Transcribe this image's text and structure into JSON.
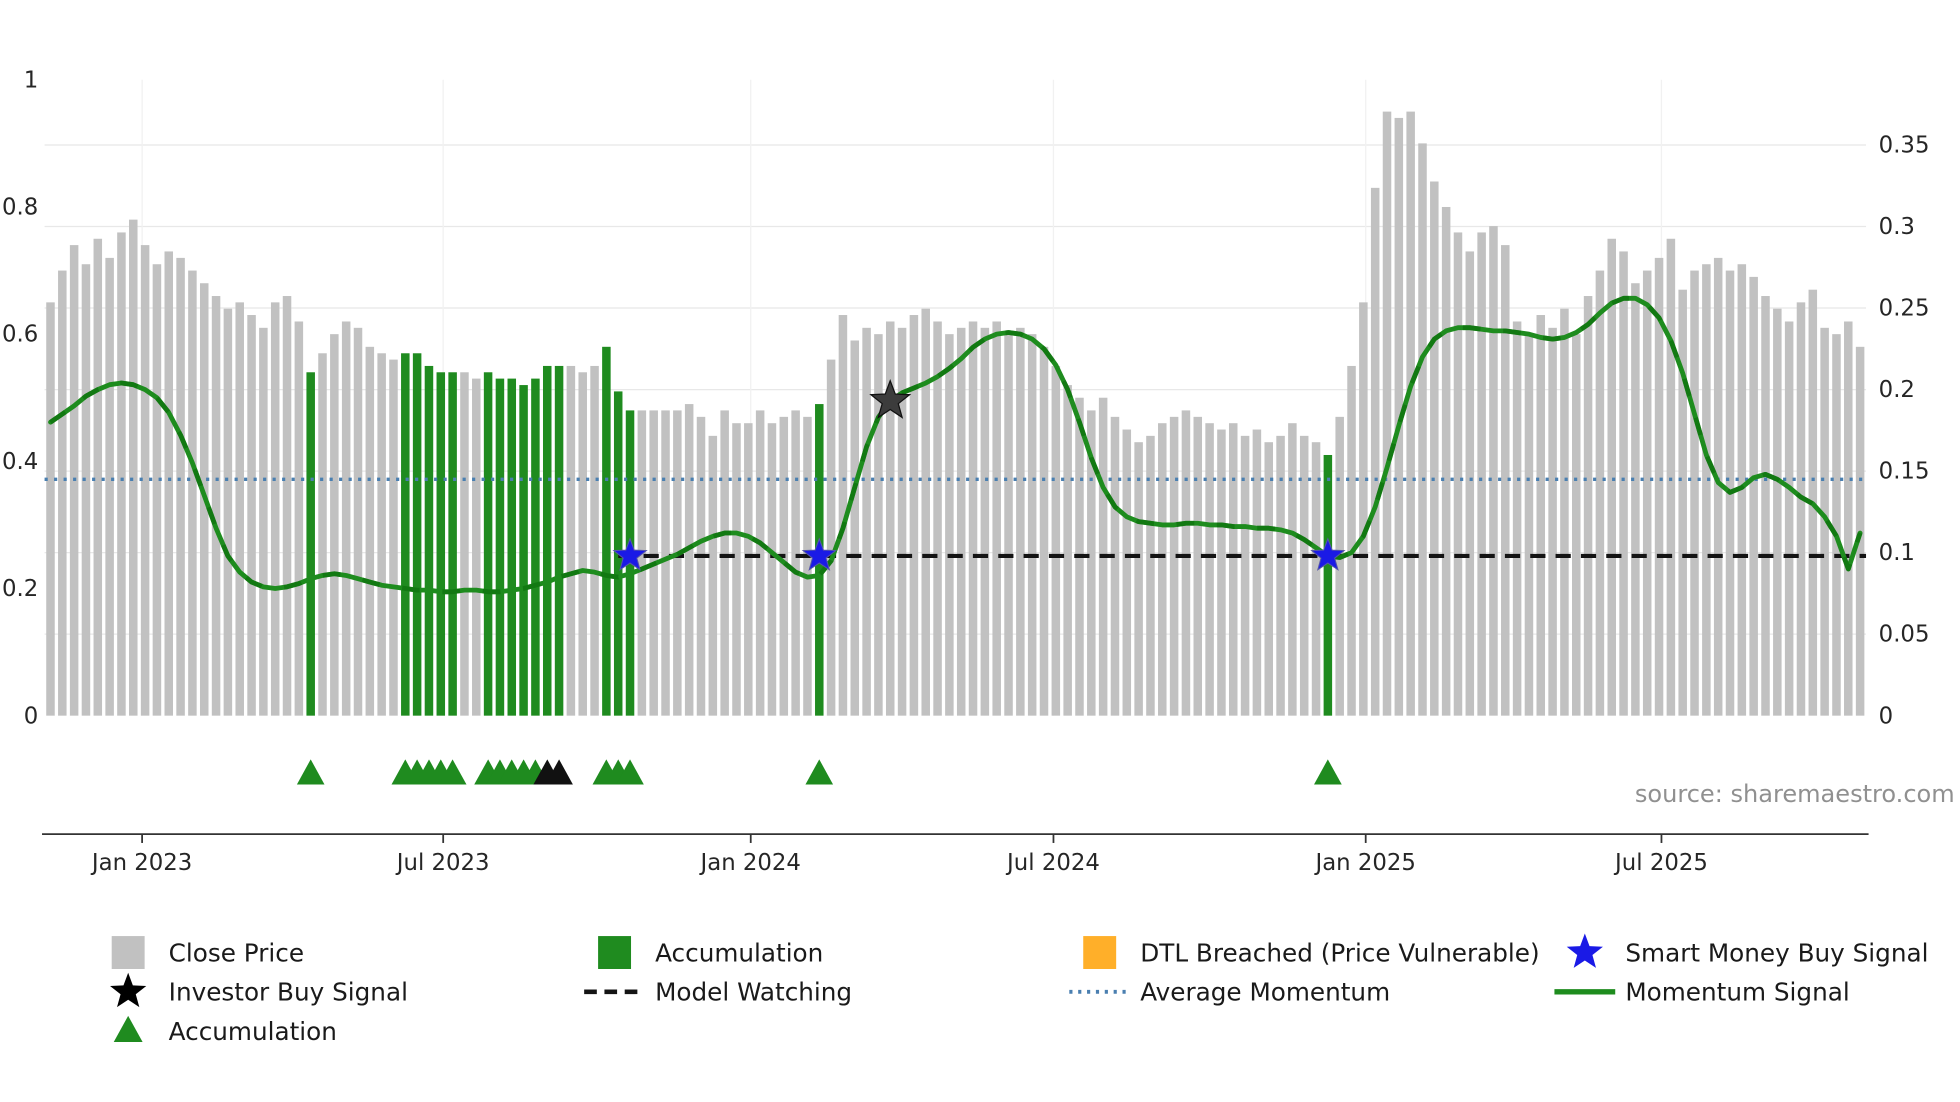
{
  "meta": {
    "source_text": "source: sharemaestro.com"
  },
  "chart_data": {
    "type": "combo",
    "title": "",
    "left_axis": {
      "max": 1,
      "ticks": [
        {
          "v": 0,
          "label": "0"
        },
        {
          "v": 0.2,
          "label": "0.2"
        },
        {
          "v": 0.4,
          "label": "0.4"
        },
        {
          "v": 0.6,
          "label": "0.6"
        },
        {
          "v": 0.8,
          "label": "0.8"
        },
        {
          "v": 1,
          "label": "1"
        }
      ]
    },
    "right_axis": {
      "max": 0.39,
      "ticks": [
        {
          "v": 0,
          "label": "0"
        },
        {
          "v": 0.05,
          "label": "0.05"
        },
        {
          "v": 0.1,
          "label": "0.1"
        },
        {
          "v": 0.15,
          "label": "0.15"
        },
        {
          "v": 0.2,
          "label": "0.2"
        },
        {
          "v": 0.25,
          "label": "0.25"
        },
        {
          "v": 0.3,
          "label": "0.3"
        },
        {
          "v": 0.35,
          "label": "0.35"
        }
      ]
    },
    "x_axis": {
      "ticks": [
        {
          "label": "Jan 2023",
          "pos": 7.75
        },
        {
          "label": "Jul 2023",
          "pos": 33.2
        },
        {
          "label": "Jan 2024",
          "pos": 59.2
        },
        {
          "label": "Jul 2024",
          "pos": 84.8
        },
        {
          "label": "Jan 2025",
          "pos": 111.2
        },
        {
          "label": "Jul 2025",
          "pos": 136.2
        }
      ]
    },
    "bars": {
      "label": "Close Price",
      "color": "#c1c1c1",
      "accumulation_color": "#1f8b1f",
      "values": [
        0.65,
        0.7,
        0.74,
        0.71,
        0.75,
        0.72,
        0.76,
        0.78,
        0.74,
        0.71,
        0.73,
        0.72,
        0.7,
        0.68,
        0.66,
        0.64,
        0.65,
        0.63,
        0.61,
        0.65,
        0.66,
        0.62,
        0.54,
        0.57,
        0.6,
        0.62,
        0.61,
        0.58,
        0.57,
        0.56,
        0.57,
        0.57,
        0.55,
        0.54,
        0.54,
        0.54,
        0.53,
        0.54,
        0.53,
        0.53,
        0.52,
        0.53,
        0.55,
        0.55,
        0.55,
        0.54,
        0.55,
        0.58,
        0.51,
        0.48,
        0.48,
        0.48,
        0.48,
        0.48,
        0.49,
        0.47,
        0.44,
        0.48,
        0.46,
        0.46,
        0.48,
        0.46,
        0.47,
        0.48,
        0.47,
        0.49,
        0.56,
        0.63,
        0.59,
        0.61,
        0.6,
        0.62,
        0.61,
        0.63,
        0.64,
        0.62,
        0.6,
        0.61,
        0.62,
        0.61,
        0.62,
        0.6,
        0.61,
        0.6,
        0.58,
        0.55,
        0.52,
        0.5,
        0.48,
        0.5,
        0.47,
        0.45,
        0.43,
        0.44,
        0.46,
        0.47,
        0.48,
        0.47,
        0.46,
        0.45,
        0.46,
        0.44,
        0.45,
        0.43,
        0.44,
        0.46,
        0.44,
        0.43,
        0.41,
        0.47,
        0.55,
        0.65,
        0.83,
        0.95,
        0.94,
        0.95,
        0.9,
        0.84,
        0.8,
        0.76,
        0.73,
        0.76,
        0.77,
        0.74,
        0.62,
        0.6,
        0.63,
        0.61,
        0.64,
        0.6,
        0.66,
        0.7,
        0.75,
        0.73,
        0.68,
        0.7,
        0.72,
        0.75,
        0.67,
        0.7,
        0.71,
        0.72,
        0.7,
        0.71,
        0.69,
        0.66,
        0.64,
        0.62,
        0.65,
        0.67,
        0.61,
        0.6,
        0.62,
        0.58
      ],
      "accumulation_indices": [
        22,
        30,
        31,
        32,
        33,
        34,
        37,
        38,
        39,
        40,
        41,
        42,
        43,
        47,
        48,
        49,
        65,
        108
      ]
    },
    "momentum": {
      "label": "Momentum Signal",
      "color": "#1e8c1e",
      "overlay_color": "#0c6e0c",
      "values": [
        0.18,
        0.185,
        0.19,
        0.196,
        0.2,
        0.203,
        0.204,
        0.203,
        0.2,
        0.195,
        0.186,
        0.172,
        0.155,
        0.135,
        0.115,
        0.098,
        0.088,
        0.082,
        0.079,
        0.078,
        0.079,
        0.081,
        0.084,
        0.086,
        0.087,
        0.086,
        0.084,
        0.082,
        0.08,
        0.079,
        0.078,
        0.077,
        0.077,
        0.076,
        0.076,
        0.077,
        0.077,
        0.076,
        0.076,
        0.077,
        0.078,
        0.08,
        0.082,
        0.085,
        0.087,
        0.089,
        0.088,
        0.086,
        0.085,
        0.087,
        0.09,
        0.093,
        0.096,
        0.099,
        0.103,
        0.107,
        0.11,
        0.112,
        0.112,
        0.11,
        0.106,
        0.1,
        0.094,
        0.088,
        0.085,
        0.086,
        0.095,
        0.115,
        0.14,
        0.165,
        0.183,
        0.193,
        0.198,
        0.201,
        0.204,
        0.208,
        0.213,
        0.219,
        0.226,
        0.231,
        0.234,
        0.235,
        0.234,
        0.231,
        0.225,
        0.215,
        0.2,
        0.18,
        0.158,
        0.14,
        0.128,
        0.122,
        0.119,
        0.118,
        0.117,
        0.117,
        0.118,
        0.118,
        0.117,
        0.117,
        0.116,
        0.116,
        0.115,
        0.115,
        0.114,
        0.112,
        0.108,
        0.103,
        0.098,
        0.097,
        0.1,
        0.11,
        0.128,
        0.152,
        0.178,
        0.202,
        0.22,
        0.231,
        0.236,
        0.238,
        0.238,
        0.237,
        0.236,
        0.236,
        0.235,
        0.234,
        0.232,
        0.231,
        0.232,
        0.235,
        0.24,
        0.247,
        0.253,
        0.256,
        0.256,
        0.252,
        0.244,
        0.23,
        0.21,
        0.185,
        0.16,
        0.143,
        0.137,
        0.14,
        0.146,
        0.148,
        0.145,
        0.14,
        0.134,
        0.13,
        0.122,
        0.11,
        0.09,
        0.112
      ]
    },
    "average_momentum": {
      "label": "Average Momentum",
      "value": 0.145,
      "color": "#4a7fb0"
    },
    "model_watching": {
      "label": "Model Watching",
      "value": 0.098,
      "start_index": 48,
      "color": "#141414"
    },
    "stars": {
      "smart_money_buy": {
        "label": "Smart Money Buy Signal",
        "color": "#1a1ae6",
        "indices": [
          49,
          65,
          108
        ]
      },
      "investor_buy": {
        "label": "Investor Buy Signal",
        "color": "#3c3c3c",
        "points": [
          {
            "index": 71,
            "value": 0.193
          }
        ]
      }
    },
    "triangle_markers": [
      {
        "index": 22,
        "color": "#1f8b1f"
      },
      {
        "index": 30,
        "color": "#1f8b1f"
      },
      {
        "index": 31,
        "color": "#1f8b1f"
      },
      {
        "index": 32,
        "color": "#1f8b1f"
      },
      {
        "index": 33,
        "color": "#1f8b1f"
      },
      {
        "index": 34,
        "color": "#1f8b1f"
      },
      {
        "index": 37,
        "color": "#1f8b1f"
      },
      {
        "index": 38,
        "color": "#1f8b1f"
      },
      {
        "index": 39,
        "color": "#1f8b1f"
      },
      {
        "index": 40,
        "color": "#1f8b1f"
      },
      {
        "index": 41,
        "color": "#1f8b1f"
      },
      {
        "index": 42,
        "color": "#111111"
      },
      {
        "index": 43,
        "color": "#111111"
      },
      {
        "index": 47,
        "color": "#1f8b1f"
      },
      {
        "index": 48,
        "color": "#1f8b1f"
      },
      {
        "index": 49,
        "color": "#1f8b1f"
      },
      {
        "index": 65,
        "color": "#1f8b1f"
      },
      {
        "index": 108,
        "color": "#1f8b1f"
      }
    ],
    "legend": {
      "items": [
        {
          "label": "Close Price",
          "icon": "square",
          "color": "#c1c1c1",
          "row": 0,
          "col": 0
        },
        {
          "label": "Accumulation",
          "icon": "square",
          "color": "#1f8b1f",
          "row": 0,
          "col": 1
        },
        {
          "label": "DTL Breached (Price Vulnerable)",
          "icon": "square",
          "color": "#ffaf29",
          "row": 0,
          "col": 2
        },
        {
          "label": "Smart Money Buy Signal",
          "icon": "star",
          "color": "#1a1ae6",
          "row": 0,
          "col": 3
        },
        {
          "label": "Investor Buy Signal",
          "icon": "star",
          "color": "#000000",
          "row": 1,
          "col": 0
        },
        {
          "label": "Model Watching",
          "icon": "dashed-line",
          "color": "#141414",
          "row": 1,
          "col": 1
        },
        {
          "label": "Average Momentum",
          "icon": "dotted-line",
          "color": "#4a7fb0",
          "row": 1,
          "col": 2
        },
        {
          "label": "Momentum Signal",
          "icon": "line",
          "color": "#1e8c1e",
          "row": 1,
          "col": 3
        },
        {
          "label": "Accumulation",
          "icon": "triangle",
          "color": "#1f8b1f",
          "row": 2,
          "col": 0
        }
      ]
    }
  }
}
